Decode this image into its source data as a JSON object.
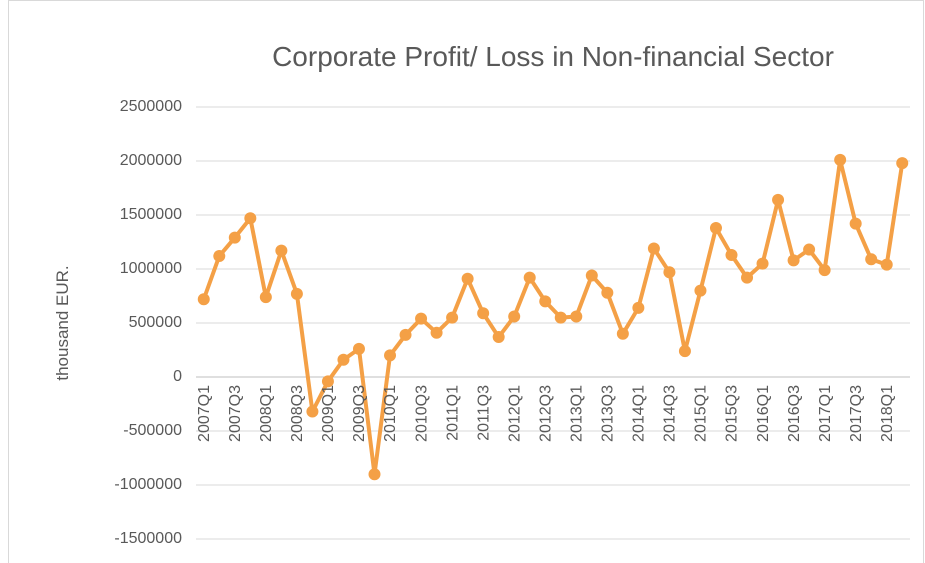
{
  "chart_data": {
    "type": "line",
    "title": "Corporate Profit/ Loss in Non-financial Sector",
    "y_label": "thousand EUR.",
    "categories": [
      "2007Q1",
      null,
      "2007Q3",
      null,
      "2008Q1",
      null,
      "2008Q3",
      null,
      "2009Q1",
      null,
      "2009Q3",
      null,
      "2010Q1",
      null,
      "2010Q3",
      null,
      "2011Q1",
      null,
      "2011Q3",
      null,
      "2012Q1",
      null,
      "2012Q3",
      null,
      "2013Q1",
      null,
      "2013Q3",
      null,
      "2014Q1",
      null,
      "2014Q3",
      null,
      "2015Q1",
      null,
      "2015Q3",
      null,
      "2016Q1",
      null,
      "2016Q3",
      null,
      "2017Q1",
      null,
      "2017Q3",
      null,
      "2018Q1",
      null
    ],
    "series": [
      {
        "name": "Corporate Profit/ Loss",
        "color": "#f4a046",
        "values": [
          720000,
          1120000,
          1290000,
          1470000,
          740000,
          1170000,
          770000,
          -320000,
          -40000,
          160000,
          260000,
          -900000,
          200000,
          390000,
          540000,
          410000,
          550000,
          910000,
          590000,
          370000,
          560000,
          920000,
          700000,
          550000,
          560000,
          940000,
          780000,
          400000,
          640000,
          1190000,
          970000,
          240000,
          800000,
          1380000,
          1130000,
          920000,
          1050000,
          1640000,
          1080000,
          1180000,
          990000,
          2010000,
          1420000,
          1090000,
          1040000,
          1980000
        ]
      }
    ],
    "ylim": [
      -1500000,
      2500000
    ],
    "yticks": [
      -1500000,
      -1000000,
      -500000,
      0,
      500000,
      1000000,
      1500000,
      2000000,
      2500000
    ],
    "grid": true
  }
}
